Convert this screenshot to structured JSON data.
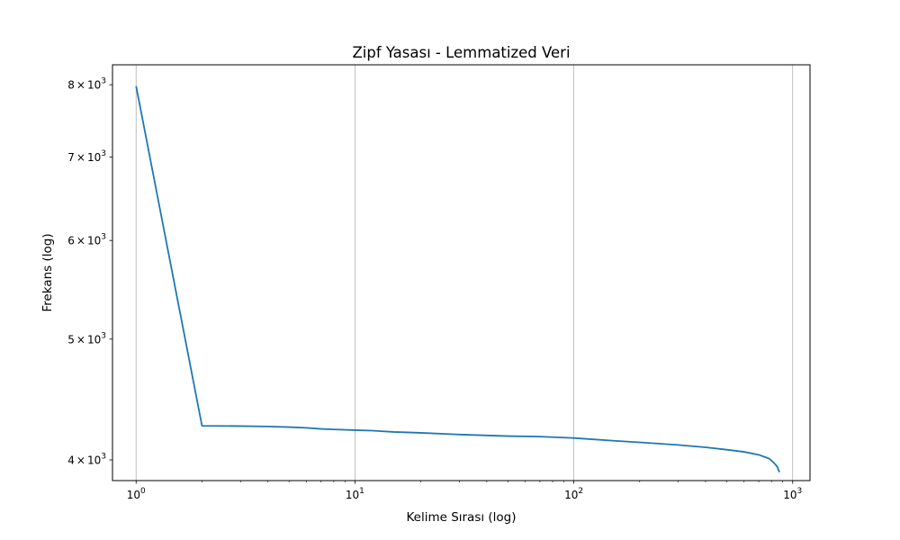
{
  "chart_data": {
    "type": "line",
    "title": "Zipf Yasası - Lemmatized Veri",
    "xlabel": "Kelime Sırası (log)",
    "ylabel": "Frekans (log)",
    "xscale": "log",
    "yscale": "log",
    "xlim": [
      0.78,
      1200
    ],
    "ylim": [
      3850,
      8300
    ],
    "grid": "x-major",
    "x_ticks": [
      {
        "value": 1,
        "base": "10",
        "exp": "0"
      },
      {
        "value": 10,
        "base": "10",
        "exp": "1"
      },
      {
        "value": 100,
        "base": "10",
        "exp": "2"
      },
      {
        "value": 1000,
        "base": "10",
        "exp": "3"
      }
    ],
    "y_ticks": [
      {
        "value": 4000,
        "mant": "4",
        "times": "×",
        "base": "10",
        "exp": "3"
      },
      {
        "value": 5000,
        "mant": "5",
        "times": "×",
        "base": "10",
        "exp": "3"
      },
      {
        "value": 6000,
        "mant": "6",
        "times": "×",
        "base": "10",
        "exp": "3"
      },
      {
        "value": 7000,
        "mant": "7",
        "times": "×",
        "base": "10",
        "exp": "3"
      },
      {
        "value": 8000,
        "mant": "8",
        "times": "×",
        "base": "10",
        "exp": "3"
      }
    ],
    "series": [
      {
        "color": "#1f77b4",
        "x": [
          1,
          2,
          3,
          4,
          5,
          6,
          7,
          8,
          10,
          12,
          15,
          20,
          30,
          50,
          70,
          100,
          150,
          200,
          300,
          400,
          500,
          600,
          700,
          780,
          820,
          850,
          870
        ],
        "y": [
          7980,
          4260,
          4258,
          4255,
          4250,
          4244,
          4236,
          4232,
          4226,
          4222,
          4212,
          4205,
          4192,
          4180,
          4176,
          4165,
          4145,
          4132,
          4112,
          4094,
          4076,
          4060,
          4038,
          4010,
          3980,
          3950,
          3910
        ]
      }
    ]
  }
}
